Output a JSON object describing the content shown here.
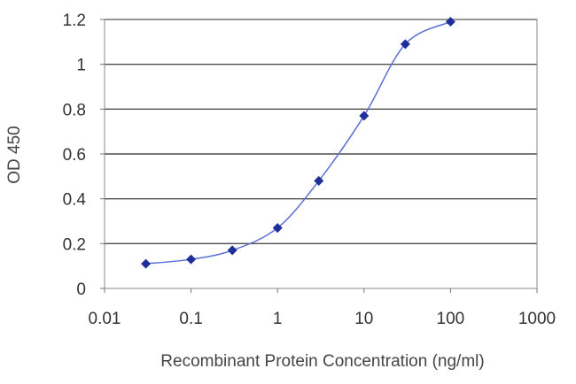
{
  "chart_data": {
    "type": "scatter",
    "xlabel": "Recombinant Protein Concentration (ng/ml)",
    "ylabel": "OD 450",
    "xscale": "log",
    "xlim": [
      0.01,
      1000
    ],
    "ylim": [
      0,
      1.2
    ],
    "grid": "horizontal",
    "x_ticks": [
      {
        "value": 0.01,
        "label": "0.01"
      },
      {
        "value": 0.1,
        "label": "0.1"
      },
      {
        "value": 1,
        "label": "1"
      },
      {
        "value": 10,
        "label": "10"
      },
      {
        "value": 100,
        "label": "100"
      },
      {
        "value": 1000,
        "label": "1000"
      }
    ],
    "y_ticks": [
      {
        "value": 0,
        "label": "0"
      },
      {
        "value": 0.2,
        "label": "0.2"
      },
      {
        "value": 0.4,
        "label": "0.4"
      },
      {
        "value": 0.6,
        "label": "0.6"
      },
      {
        "value": 0.8,
        "label": "0.8"
      },
      {
        "value": 1.0,
        "label": "1"
      },
      {
        "value": 1.2,
        "label": "1.2"
      }
    ],
    "series": [
      {
        "x": [
          0.03,
          0.1,
          0.3,
          1,
          3,
          10,
          30,
          100
        ],
        "y": [
          0.11,
          0.13,
          0.17,
          0.27,
          0.48,
          0.77,
          1.09,
          1.19
        ],
        "color": "#1f2f99",
        "line_color": "#5a6fd6",
        "marker": "diamond"
      }
    ]
  }
}
